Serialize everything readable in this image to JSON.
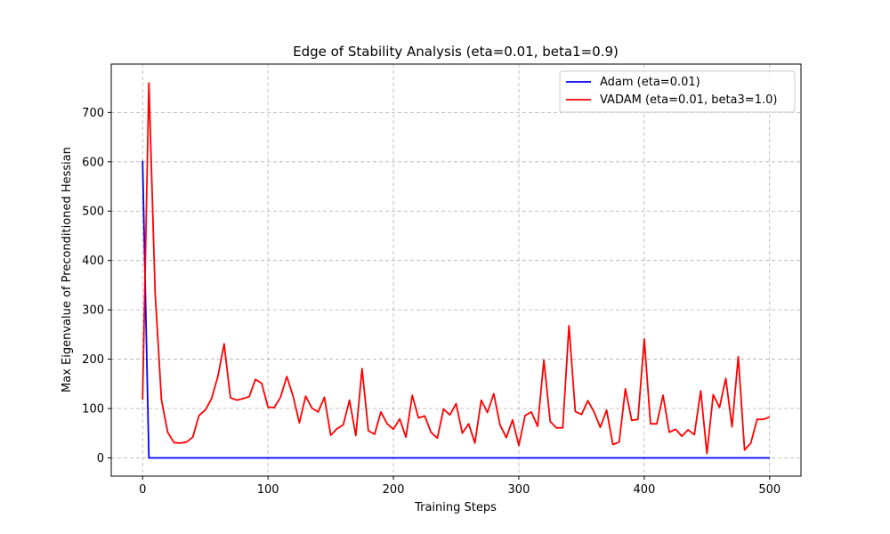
{
  "chart_data": {
    "type": "line",
    "title": "Edge of Stability Analysis (eta=0.01, beta1=0.9)",
    "xlabel": "Training Steps",
    "ylabel": "Max Eigenvalue of Preconditioned Hessian",
    "xlim": [
      -25,
      525
    ],
    "ylim": [
      -37,
      798
    ],
    "xticks": [
      0,
      100,
      200,
      300,
      400,
      500
    ],
    "yticks": [
      0,
      100,
      200,
      300,
      400,
      500,
      600,
      700
    ],
    "grid": true,
    "legend_position": "top-right",
    "series": [
      {
        "name": "Adam (eta=0.01)",
        "color": "#0000ff",
        "x": [
          0,
          5,
          10,
          500
        ],
        "y": [
          602,
          0,
          0,
          0
        ]
      },
      {
        "name": "VADAM (eta=0.01, beta3=1.0)",
        "color": "#ff0000",
        "x": [
          0,
          5,
          10,
          15,
          20,
          25,
          30,
          35,
          40,
          45,
          50,
          55,
          60,
          65,
          70,
          75,
          80,
          85,
          90,
          95,
          100,
          105,
          110,
          115,
          120,
          125,
          130,
          135,
          140,
          145,
          150,
          155,
          160,
          165,
          170,
          175,
          180,
          185,
          190,
          195,
          200,
          205,
          210,
          215,
          220,
          225,
          230,
          235,
          240,
          245,
          250,
          255,
          260,
          265,
          270,
          275,
          280,
          285,
          290,
          295,
          300,
          305,
          310,
          315,
          320,
          325,
          330,
          335,
          340,
          345,
          350,
          355,
          360,
          365,
          370,
          375,
          380,
          385,
          390,
          395,
          400,
          405,
          410,
          415,
          420,
          425,
          430,
          435,
          440,
          445,
          450,
          455,
          460,
          465,
          470,
          475,
          480,
          485,
          490,
          495,
          500
        ],
        "y": [
          118,
          760,
          335,
          118,
          52,
          31,
          30,
          32,
          42,
          86,
          97,
          120,
          165,
          231,
          122,
          117,
          120,
          124,
          159,
          151,
          103,
          102,
          123,
          165,
          125,
          71,
          125,
          101,
          93,
          123,
          46,
          59,
          67,
          117,
          45,
          181,
          55,
          48,
          93,
          69,
          58,
          79,
          42,
          127,
          81,
          85,
          52,
          40,
          99,
          87,
          110,
          50,
          69,
          30,
          117,
          92,
          130,
          67,
          41,
          77,
          25,
          86,
          93,
          64,
          198,
          74,
          61,
          61,
          268,
          94,
          88,
          116,
          93,
          62,
          97,
          27,
          32,
          140,
          76,
          78,
          241,
          69,
          69,
          127,
          52,
          58,
          44,
          57,
          47,
          136,
          9,
          128,
          102,
          161,
          63,
          205,
          16,
          30,
          78,
          78,
          83
        ]
      }
    ]
  }
}
